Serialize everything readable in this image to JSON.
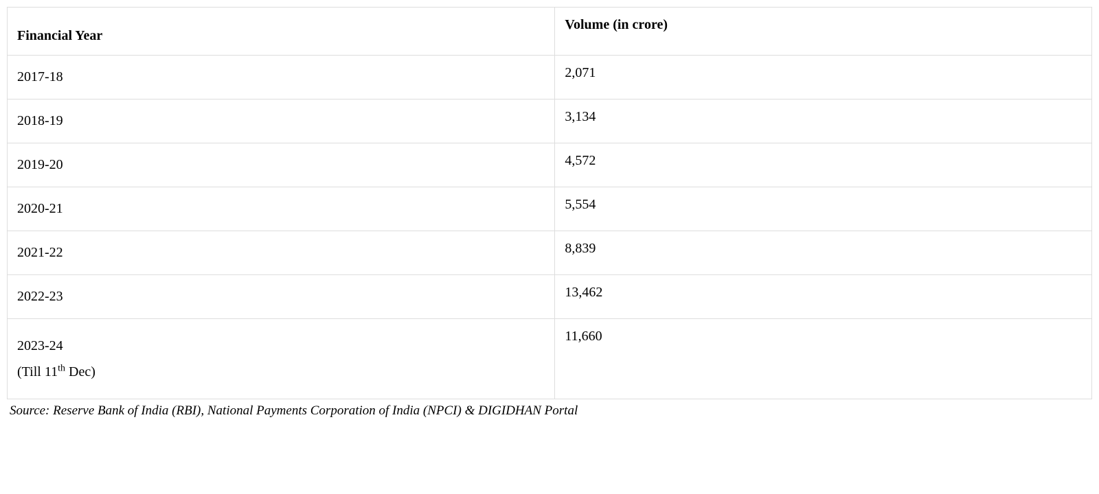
{
  "table": {
    "type": "table",
    "columns": [
      {
        "label": "Financial Year",
        "width_pct": 50.5,
        "align": "left"
      },
      {
        "label": "Volume (in crore)",
        "width_pct": 49.5,
        "align": "left"
      }
    ],
    "rows": [
      {
        "year": "2017-18",
        "volume": "2,071"
      },
      {
        "year": "2018-19",
        "volume": "3,134"
      },
      {
        "year": "2019-20",
        "volume": "4,572"
      },
      {
        "year": "2020-21",
        "volume": "5,554"
      },
      {
        "year": "2021-22",
        "volume": "8,839"
      },
      {
        "year": "2022-23",
        "volume": "13,462"
      },
      {
        "year_line1": "2023-24",
        "year_line2_prefix": "(Till 11",
        "year_line2_sup": "th",
        "year_line2_suffix": " Dec)",
        "volume": "11,660"
      }
    ],
    "border_color": "#dddddd",
    "background_color": "#ffffff",
    "font_family": "Georgia, Times New Roman, serif",
    "font_size_pt": 15,
    "text_color": "#000000"
  },
  "source": {
    "text": "Source: Reserve Bank of India (RBI), National Payments Corporation of India (NPCI) & DIGIDHAN Portal",
    "font_style": "italic",
    "font_size_pt": 14
  }
}
